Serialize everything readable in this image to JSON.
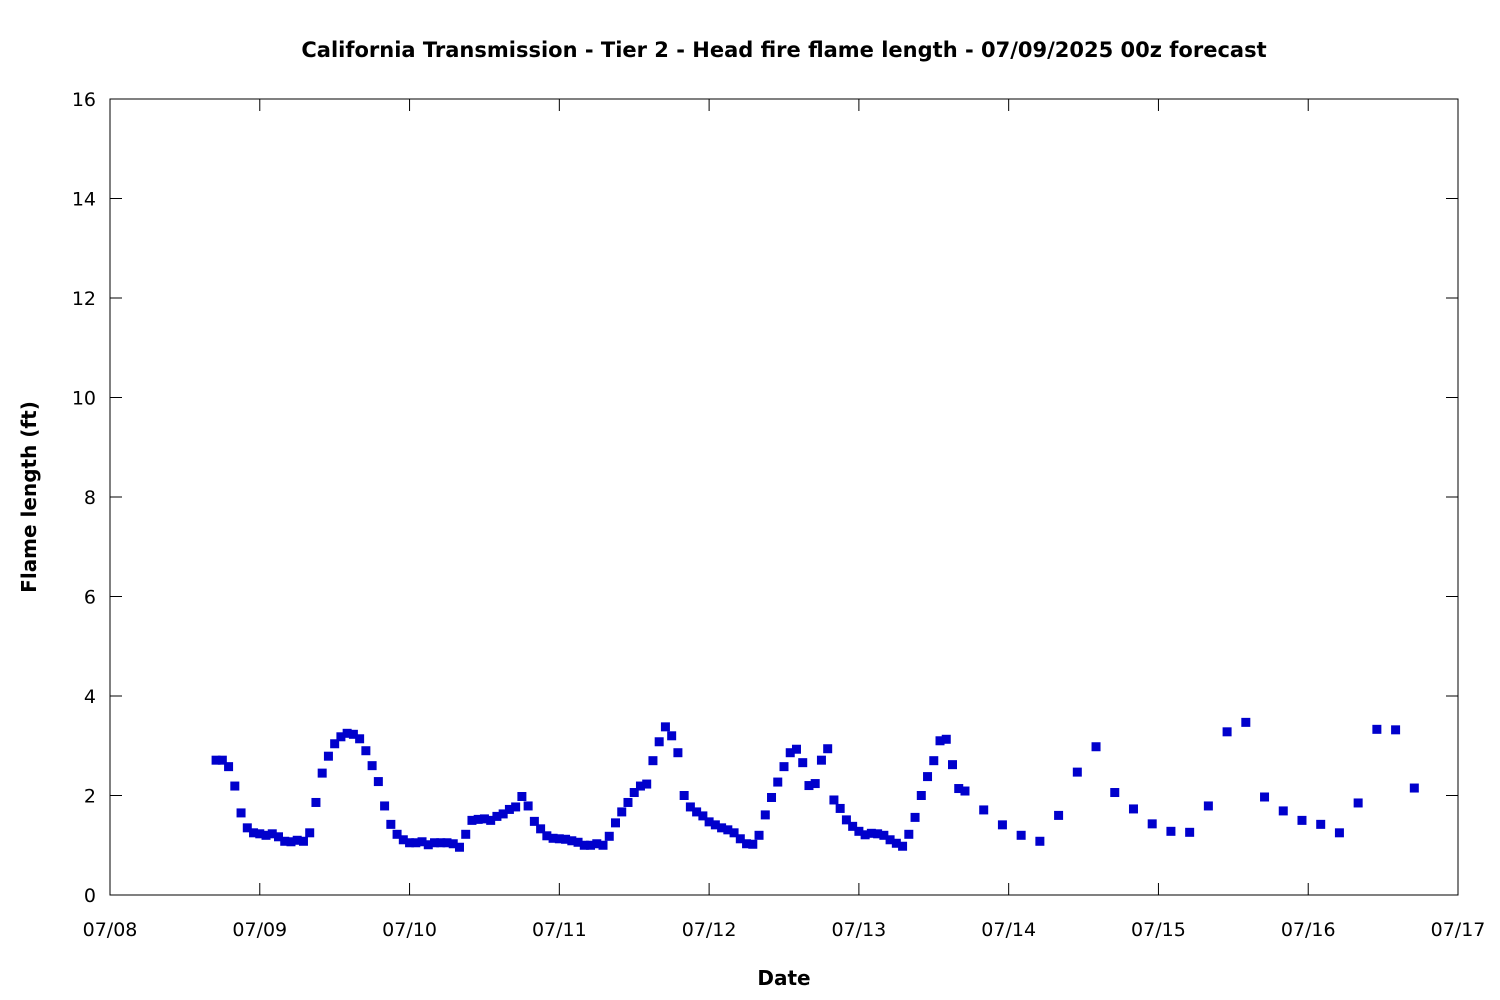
{
  "chart_data": {
    "type": "scatter",
    "title": "California Transmission - Tier 2 - Head fire flame length - 07/09/2025 00z forecast",
    "xlabel": "Date",
    "ylabel": "Flame length (ft)",
    "xlim": [
      "07/08",
      "07/17"
    ],
    "ylim": [
      0,
      16
    ],
    "x_ticks": [
      "07/08",
      "07/09",
      "07/10",
      "07/11",
      "07/12",
      "07/13",
      "07/14",
      "07/15",
      "07/16",
      "07/17"
    ],
    "y_ticks": [
      0,
      2,
      4,
      6,
      8,
      10,
      12,
      14,
      16
    ],
    "grid": false,
    "marker_color": "#0000cc",
    "series": [
      {
        "x": [
          "07/08 17:00",
          "07/08 18:00",
          "07/08 19:00",
          "07/08 20:00",
          "07/08 21:00",
          "07/08 22:00",
          "07/08 23:00",
          "07/09 00:00",
          "07/09 01:00",
          "07/09 02:00",
          "07/09 03:00",
          "07/09 04:00",
          "07/09 05:00",
          "07/09 06:00",
          "07/09 07:00",
          "07/09 08:00",
          "07/09 09:00",
          "07/09 10:00",
          "07/09 11:00",
          "07/09 12:00",
          "07/09 13:00",
          "07/09 14:00",
          "07/09 15:00",
          "07/09 16:00",
          "07/09 17:00",
          "07/09 18:00",
          "07/09 19:00",
          "07/09 20:00",
          "07/09 21:00",
          "07/09 22:00",
          "07/09 23:00",
          "07/10 00:00",
          "07/10 01:00",
          "07/10 02:00",
          "07/10 03:00",
          "07/10 04:00",
          "07/10 05:00",
          "07/10 06:00",
          "07/10 07:00",
          "07/10 08:00",
          "07/10 09:00",
          "07/10 10:00",
          "07/10 11:00",
          "07/10 12:00",
          "07/10 13:00",
          "07/10 14:00",
          "07/10 15:00",
          "07/10 16:00",
          "07/10 17:00",
          "07/10 18:00",
          "07/10 19:00",
          "07/10 20:00",
          "07/10 21:00",
          "07/10 22:00",
          "07/10 23:00",
          "07/11 00:00",
          "07/11 01:00",
          "07/11 02:00",
          "07/11 03:00",
          "07/11 04:00",
          "07/11 05:00",
          "07/11 06:00",
          "07/11 07:00",
          "07/11 08:00",
          "07/11 09:00",
          "07/11 10:00",
          "07/11 11:00",
          "07/11 12:00",
          "07/11 13:00",
          "07/11 14:00",
          "07/11 15:00",
          "07/11 16:00",
          "07/11 17:00",
          "07/11 18:00",
          "07/11 19:00",
          "07/11 20:00",
          "07/11 21:00",
          "07/11 22:00",
          "07/11 23:00",
          "07/12 00:00",
          "07/12 01:00",
          "07/12 02:00",
          "07/12 03:00",
          "07/12 04:00",
          "07/12 05:00",
          "07/12 06:00",
          "07/12 07:00",
          "07/12 08:00",
          "07/12 09:00",
          "07/12 10:00",
          "07/12 11:00",
          "07/12 12:00",
          "07/12 13:00",
          "07/12 14:00",
          "07/12 15:00",
          "07/12 16:00",
          "07/12 17:00",
          "07/12 18:00",
          "07/12 19:00",
          "07/12 20:00",
          "07/12 21:00",
          "07/12 22:00",
          "07/12 23:00",
          "07/13 00:00",
          "07/13 01:00",
          "07/13 02:00",
          "07/13 03:00",
          "07/13 04:00",
          "07/13 05:00",
          "07/13 06:00",
          "07/13 07:00",
          "07/13 08:00",
          "07/13 09:00",
          "07/13 10:00",
          "07/13 11:00",
          "07/13 12:00",
          "07/13 13:00",
          "07/13 14:00",
          "07/13 15:00",
          "07/13 16:00",
          "07/13 17:00",
          "07/13 20:00",
          "07/13 23:00",
          "07/14 02:00",
          "07/14 05:00",
          "07/14 08:00",
          "07/14 11:00",
          "07/14 14:00",
          "07/14 17:00",
          "07/14 20:00",
          "07/14 23:00",
          "07/15 02:00",
          "07/15 05:00",
          "07/15 08:00",
          "07/15 11:00",
          "07/15 14:00",
          "07/15 17:00",
          "07/15 20:00",
          "07/15 23:00",
          "07/16 02:00",
          "07/16 05:00",
          "07/16 08:00",
          "07/16 11:00",
          "07/16 14:00",
          "07/16 17:00"
        ],
        "y": [
          2.71,
          2.71,
          2.58,
          2.19,
          1.65,
          1.35,
          1.25,
          1.23,
          1.2,
          1.23,
          1.17,
          1.08,
          1.07,
          1.1,
          1.08,
          1.25,
          1.86,
          2.45,
          2.79,
          3.04,
          3.18,
          3.25,
          3.23,
          3.14,
          2.9,
          2.6,
          2.28,
          1.79,
          1.42,
          1.22,
          1.11,
          1.05,
          1.05,
          1.07,
          1.01,
          1.05,
          1.05,
          1.05,
          1.03,
          0.96,
          1.22,
          1.5,
          1.52,
          1.53,
          1.5,
          1.58,
          1.63,
          1.72,
          1.77,
          1.98,
          1.79,
          1.48,
          1.33,
          1.19,
          1.14,
          1.13,
          1.12,
          1.09,
          1.06,
          1.0,
          1.0,
          1.03,
          1.0,
          1.18,
          1.45,
          1.67,
          1.86,
          2.06,
          2.19,
          2.23,
          2.7,
          3.08,
          3.38,
          3.2,
          2.86,
          2.0,
          1.77,
          1.67,
          1.59,
          1.47,
          1.41,
          1.35,
          1.31,
          1.25,
          1.13,
          1.03,
          1.02,
          1.2,
          1.61,
          1.96,
          2.27,
          2.58,
          2.86,
          2.93,
          2.66,
          2.2,
          2.24,
          2.71,
          2.94,
          1.91,
          1.74,
          1.51,
          1.38,
          1.28,
          1.21,
          1.24,
          1.23,
          1.2,
          1.11,
          1.04,
          0.98,
          1.22,
          1.56,
          2.0,
          2.38,
          2.7,
          3.1,
          3.13,
          2.62,
          2.14,
          2.09,
          1.71,
          1.41,
          1.2,
          1.08,
          1.6,
          2.47,
          2.98,
          2.06,
          1.73,
          1.43,
          1.28,
          1.26,
          1.79,
          3.28,
          3.47,
          1.97,
          1.69,
          1.5,
          1.42,
          1.25,
          1.85,
          3.33,
          3.32,
          2.15
        ]
      }
    ]
  }
}
